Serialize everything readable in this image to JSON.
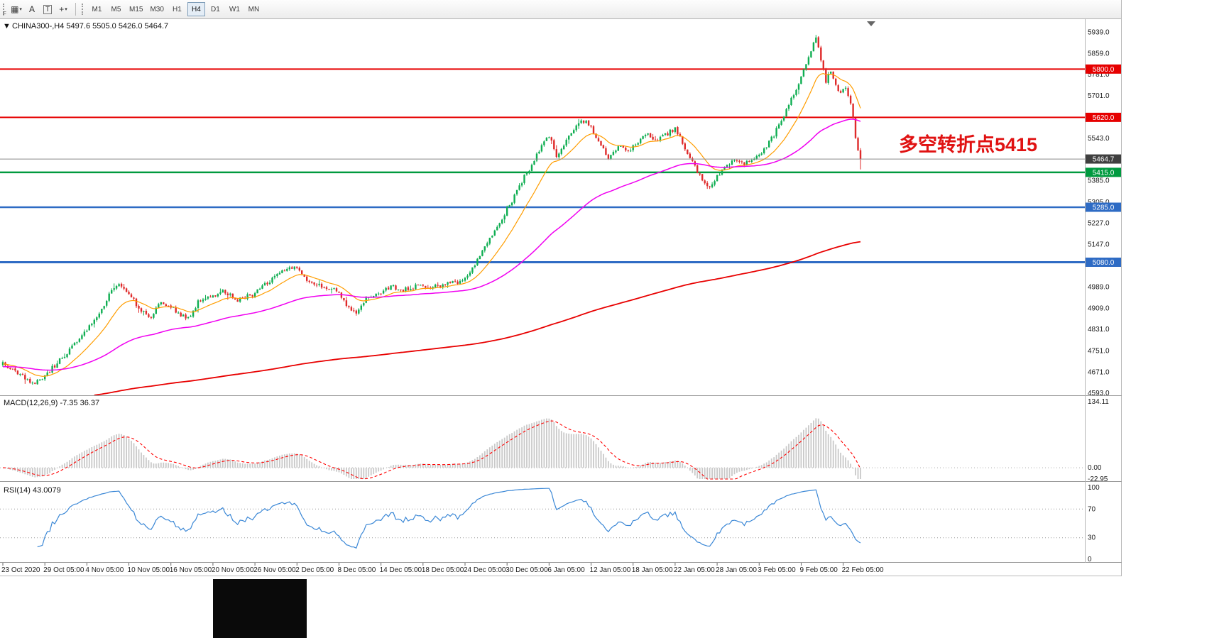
{
  "toolbar": {
    "f_label": "F",
    "tools": [
      {
        "name": "charts-grid",
        "glyph": "▦",
        "caret": true
      },
      {
        "name": "text-label-a",
        "glyph": "A"
      },
      {
        "name": "text-tool-t",
        "glyph": "T",
        "boxed": true
      },
      {
        "name": "crosshair",
        "glyph": "+",
        "caret": true
      }
    ],
    "timeframes": [
      "M1",
      "M5",
      "M15",
      "M30",
      "H1",
      "H4",
      "D1",
      "W1",
      "MN"
    ],
    "active_timeframe": "H4"
  },
  "icons": {
    "collapse_triangle": "▼"
  },
  "chart_header": {
    "symbol_line": "CHINA300-,H4 5497.6 5505.0 5426.0 5464.7"
  },
  "annotation": {
    "text": "多空转折点5415",
    "color": "#e01212"
  },
  "chart_data": {
    "type": "candlestick",
    "symbol": "CHINA300-",
    "timeframe": "H4",
    "current_ohlc": {
      "open": 5497.6,
      "high": 5505.0,
      "low": 5426.0,
      "close": 5464.7
    },
    "bars": 348,
    "axis": {
      "price_top": 5986,
      "price_bottom": 4584,
      "ticks": [
        5939.0,
        5859.0,
        5781.0,
        5701.0,
        5621.0,
        5543.0,
        5465.0,
        5385.0,
        5305.0,
        5227.0,
        5147.0,
        5069.0,
        4989.0,
        4909.0,
        4831.0,
        4751.0,
        4671.0,
        4593.0
      ]
    },
    "bid": {
      "value": 5464.7,
      "label": "5464.7",
      "line_color": "#8a8a8a",
      "badge_color": "#3f3f3f"
    },
    "levels": [
      {
        "value": 5800.0,
        "label": "5800.0",
        "color": "#e60000",
        "width": 2
      },
      {
        "value": 5620.0,
        "label": "5620.0",
        "color": "#e60000",
        "width": 2
      },
      {
        "value": 5415.0,
        "label": "5415.0",
        "color": "#009a3f",
        "width": 2.5
      },
      {
        "value": 5285.0,
        "label": "5285.0",
        "color": "#2e6bc4",
        "width": 2.5
      },
      {
        "value": 5080.0,
        "label": "5080.0",
        "color": "#2e6bc4",
        "width": 3
      }
    ],
    "candle_colors": {
      "up": "#0fae52",
      "down": "#df2a2a"
    },
    "price_path": [
      [
        0,
        4700
      ],
      [
        6,
        4665
      ],
      [
        12,
        4628
      ],
      [
        16,
        4650
      ],
      [
        21,
        4695
      ],
      [
        27,
        4755
      ],
      [
        33,
        4815
      ],
      [
        39,
        4890
      ],
      [
        44,
        4975
      ],
      [
        47,
        5005
      ],
      [
        51,
        4960
      ],
      [
        56,
        4900
      ],
      [
        60,
        4875
      ],
      [
        64,
        4930
      ],
      [
        68,
        4915
      ],
      [
        72,
        4885
      ],
      [
        75,
        4870
      ],
      [
        79,
        4930
      ],
      [
        84,
        4950
      ],
      [
        89,
        4975
      ],
      [
        95,
        4940
      ],
      [
        101,
        4960
      ],
      [
        107,
        5005
      ],
      [
        113,
        5045
      ],
      [
        118,
        5060
      ],
      [
        123,
        5015
      ],
      [
        129,
        4990
      ],
      [
        135,
        4975
      ],
      [
        140,
        4905
      ],
      [
        143,
        4890
      ],
      [
        147,
        4940
      ],
      [
        152,
        4965
      ],
      [
        157,
        4990
      ],
      [
        162,
        4975
      ],
      [
        168,
        4995
      ],
      [
        173,
        4985
      ],
      [
        179,
        5000
      ],
      [
        186,
        5010
      ],
      [
        191,
        5070
      ],
      [
        196,
        5150
      ],
      [
        201,
        5230
      ],
      [
        206,
        5310
      ],
      [
        211,
        5400
      ],
      [
        215,
        5455
      ],
      [
        218,
        5520
      ],
      [
        221,
        5550
      ],
      [
        224,
        5480
      ],
      [
        227,
        5515
      ],
      [
        231,
        5580
      ],
      [
        234,
        5610
      ],
      [
        237,
        5595
      ],
      [
        241,
        5530
      ],
      [
        245,
        5470
      ],
      [
        249,
        5515
      ],
      [
        253,
        5495
      ],
      [
        257,
        5530
      ],
      [
        261,
        5555
      ],
      [
        265,
        5535
      ],
      [
        269,
        5560
      ],
      [
        272,
        5580
      ],
      [
        275,
        5525
      ],
      [
        279,
        5450
      ],
      [
        283,
        5390
      ],
      [
        286,
        5360
      ],
      [
        289,
        5400
      ],
      [
        292,
        5435
      ],
      [
        296,
        5465
      ],
      [
        300,
        5445
      ],
      [
        304,
        5465
      ],
      [
        308,
        5500
      ],
      [
        312,
        5555
      ],
      [
        316,
        5625
      ],
      [
        320,
        5710
      ],
      [
        323,
        5770
      ],
      [
        326,
        5845
      ],
      [
        329,
        5920
      ],
      [
        331,
        5830
      ],
      [
        333,
        5755
      ],
      [
        335,
        5795
      ],
      [
        337,
        5745
      ],
      [
        339,
        5705
      ],
      [
        341,
        5735
      ],
      [
        343,
        5675
      ],
      [
        345,
        5550
      ],
      [
        346,
        5500
      ],
      [
        347,
        5465
      ]
    ],
    "moving_averages": [
      {
        "name": "fast-ma",
        "color": "#ff9d00",
        "period": 16,
        "init": 4700,
        "width": 1.2
      },
      {
        "name": "mid-ma",
        "color": "#f000f0",
        "period": 80,
        "init": 4690,
        "width": 1.5
      },
      {
        "name": "slow-ma",
        "color": "#e80000",
        "period": 450,
        "init": 4560,
        "width": 1.8
      }
    ],
    "x_labels": [
      {
        "i": 0,
        "t": "23 Oct 2020"
      },
      {
        "i": 17,
        "t": "29 Oct 05:00"
      },
      {
        "i": 34,
        "t": "4 Nov 05:00"
      },
      {
        "i": 51,
        "t": "10 Nov 05:00"
      },
      {
        "i": 68,
        "t": "16 Nov 05:00"
      },
      {
        "i": 85,
        "t": "20 Nov 05:00"
      },
      {
        "i": 102,
        "t": "26 Nov 05:00"
      },
      {
        "i": 119,
        "t": "2 Dec 05:00"
      },
      {
        "i": 136,
        "t": "8 Dec 05:00"
      },
      {
        "i": 153,
        "t": "14 Dec 05:00"
      },
      {
        "i": 170,
        "t": "18 Dec 05:00"
      },
      {
        "i": 187,
        "t": "24 Dec 05:00"
      },
      {
        "i": 204,
        "t": "30 Dec 05:00"
      },
      {
        "i": 221,
        "t": "6 Jan 05:00"
      },
      {
        "i": 238,
        "t": "12 Jan 05:00"
      },
      {
        "i": 255,
        "t": "18 Jan 05:00"
      },
      {
        "i": 272,
        "t": "22 Jan 05:00"
      },
      {
        "i": 289,
        "t": "28 Jan 05:00"
      },
      {
        "i": 306,
        "t": "3 Feb 05:00"
      },
      {
        "i": 323,
        "t": "9 Feb 05:00"
      },
      {
        "i": 340,
        "t": "22 Feb 05:00"
      }
    ],
    "macd": {
      "label": "MACD(12,26,9) -7.35 36.37",
      "fast": 12,
      "slow": 26,
      "smoothing": 9,
      "main_value": -7.35,
      "signal_value": 36.37,
      "axis_max": 134.11,
      "axis_zero": 0.0,
      "axis_min": -22.95,
      "hist_color": "#c9c9c9",
      "signal_color": "#ff0000"
    },
    "rsi": {
      "label": "RSI(14) 43.0079",
      "period": 14,
      "value": 43.0079,
      "levels": [
        70,
        30
      ],
      "axis_labels": [
        100,
        70,
        30,
        0
      ],
      "color": "#3a87d6"
    }
  }
}
